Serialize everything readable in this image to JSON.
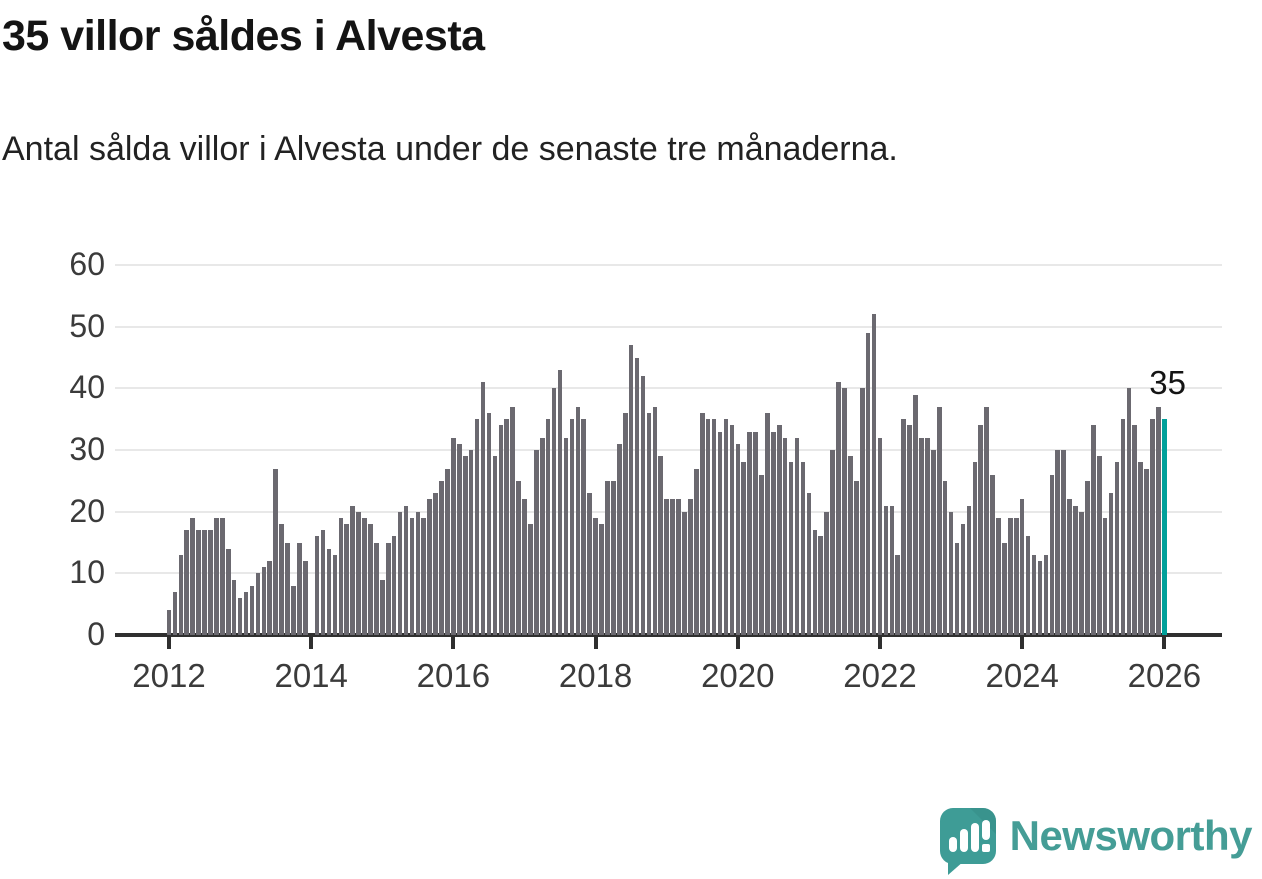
{
  "header": {
    "title": "35 villor såldes i Alvesta",
    "subtitle": "Antal sålda villor i Alvesta under de senaste tre månaderna."
  },
  "chart_data": {
    "type": "bar",
    "title": "35 villor såldes i Alvesta",
    "subtitle": "Antal sålda villor i Alvesta under de senaste tre månaderna.",
    "start_month": "2012-01",
    "values": [
      4,
      7,
      13,
      17,
      19,
      17,
      17,
      17,
      19,
      19,
      14,
      9,
      6,
      7,
      8,
      10,
      11,
      12,
      27,
      18,
      15,
      8,
      15,
      12,
      0,
      16,
      17,
      14,
      13,
      19,
      18,
      21,
      20,
      19,
      18,
      15,
      9,
      15,
      16,
      20,
      21,
      19,
      20,
      19,
      22,
      23,
      25,
      27,
      32,
      31,
      29,
      30,
      35,
      41,
      36,
      29,
      34,
      35,
      37,
      25,
      22,
      18,
      30,
      32,
      35,
      40,
      43,
      32,
      35,
      37,
      35,
      23,
      19,
      18,
      25,
      25,
      31,
      36,
      47,
      45,
      42,
      36,
      37,
      29,
      22,
      22,
      22,
      20,
      22,
      27,
      36,
      35,
      35,
      33,
      35,
      34,
      31,
      28,
      33,
      33,
      26,
      36,
      33,
      34,
      32,
      28,
      32,
      28,
      23,
      17,
      16,
      20,
      30,
      41,
      40,
      29,
      25,
      40,
      49,
      52,
      32,
      21,
      21,
      13,
      35,
      34,
      39,
      32,
      32,
      30,
      37,
      25,
      20,
      15,
      18,
      21,
      28,
      34,
      37,
      26,
      19,
      15,
      19,
      19,
      22,
      16,
      13,
      12,
      13,
      26,
      30,
      30,
      22,
      21,
      20,
      25,
      34,
      29,
      19,
      23,
      28,
      35,
      40,
      34,
      28,
      27,
      35,
      37,
      35
    ],
    "highlight_index": 168,
    "highlight_value_label": "35",
    "bar_color": "#6b6970",
    "highlight_color": "#00a09a",
    "ylim": [
      0,
      60
    ],
    "yticks": [
      0,
      10,
      20,
      30,
      40,
      50,
      60
    ],
    "xtick_labels": [
      "2012",
      "2014",
      "2016",
      "2018",
      "2020",
      "2022",
      "2024",
      "2026"
    ],
    "xtick_month_indices": [
      0,
      24,
      48,
      72,
      96,
      120,
      144,
      168
    ],
    "grid": true,
    "legend": "none",
    "xlabel": "",
    "ylabel": ""
  },
  "annotation": {
    "last_value": "35"
  },
  "footer": {
    "brand": "Newsworthy",
    "brand_color": "#459d96"
  }
}
